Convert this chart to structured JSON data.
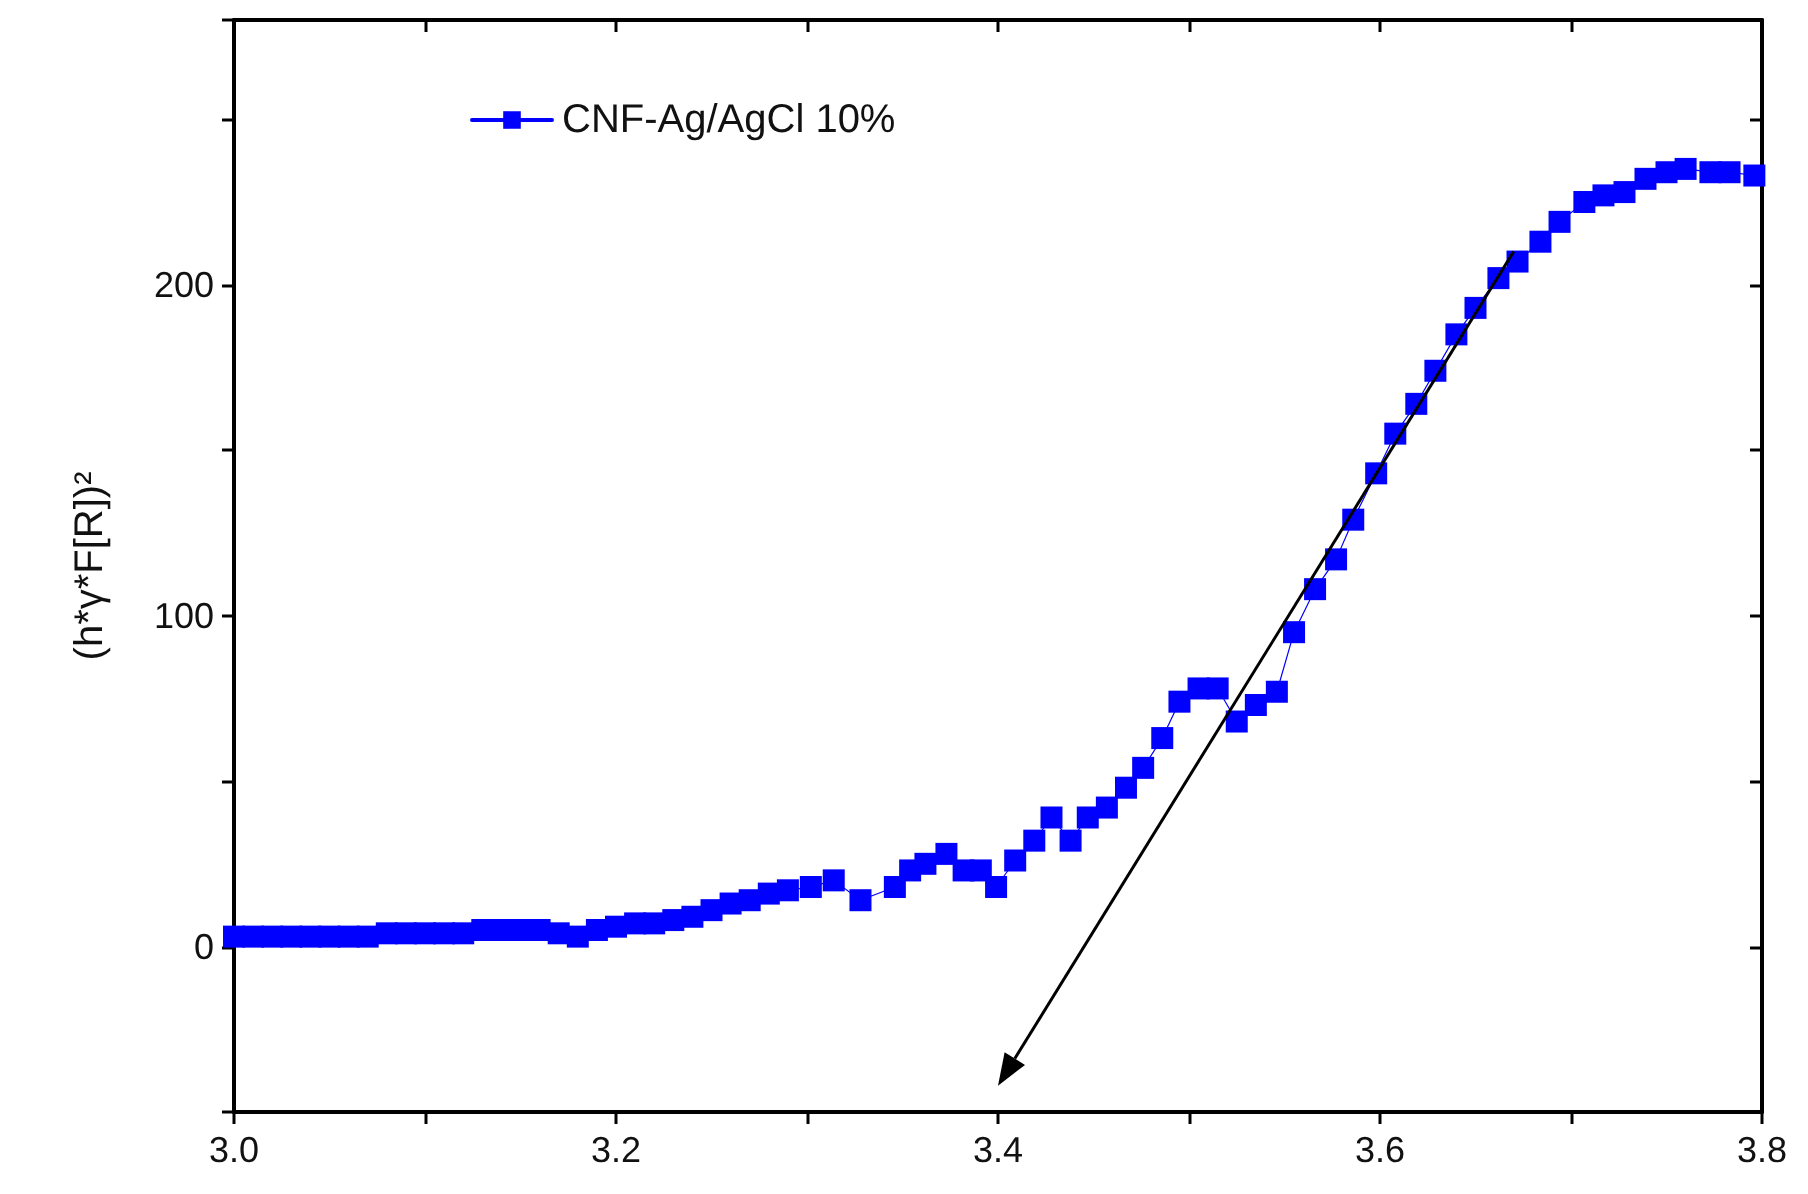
{
  "chart_data": {
    "type": "line",
    "ylabel": "(h*γ*F[R])²",
    "xlim": [
      3.0,
      3.8
    ],
    "xticks": [
      {
        "value": 3.0,
        "label": "3.0"
      },
      {
        "value": 3.1,
        "label": null
      },
      3.2,
      {
        "value": 3.3,
        "label": null
      },
      3.4,
      {
        "value": 3.5,
        "label": null
      },
      3.6,
      {
        "value": 3.7,
        "label": null
      },
      3.8
    ],
    "ylim": [
      -50,
      280
    ],
    "yticks": [
      {
        "value": -50,
        "label": null
      },
      0,
      {
        "value": 50,
        "label": null
      },
      100,
      {
        "value": 150,
        "label": null
      },
      200,
      {
        "value": 250,
        "label": null
      }
    ],
    "legend": "top left",
    "grid": false,
    "series": [
      {
        "name": "CNF-Ag/AgCl 10%",
        "marker": "square",
        "color": "#0000ff",
        "x": [
          3.0,
          3.01,
          3.02,
          3.03,
          3.04,
          3.05,
          3.06,
          3.07,
          3.08,
          3.09,
          3.1,
          3.11,
          3.12,
          3.13,
          3.14,
          3.15,
          3.16,
          3.17,
          3.18,
          3.19,
          3.2,
          3.21,
          3.22,
          3.23,
          3.24,
          3.25,
          3.26,
          3.27,
          3.28,
          3.29,
          3.302,
          3.314,
          3.328,
          3.346,
          3.354,
          3.362,
          3.373,
          3.382,
          3.391,
          3.399,
          3.409,
          3.419,
          3.428,
          3.438,
          3.447,
          3.457,
          3.467,
          3.476,
          3.486,
          3.495,
          3.505,
          3.515,
          3.525,
          3.535,
          3.546,
          3.555,
          3.566,
          3.577,
          3.586,
          3.598,
          3.608,
          3.619,
          3.629,
          3.64,
          3.65,
          3.662,
          3.672,
          3.684,
          3.694,
          3.707,
          3.717,
          3.728,
          3.739,
          3.75,
          3.76,
          3.773,
          3.783,
          3.796
        ],
        "values": [
          3,
          3,
          3,
          3,
          3,
          3,
          3,
          3,
          4,
          4,
          4,
          4,
          4,
          5,
          5,
          5,
          5,
          4,
          3,
          5,
          6,
          7,
          7,
          8,
          9,
          11,
          13,
          14,
          16,
          17,
          18,
          20,
          14,
          18,
          23,
          25,
          28,
          23,
          23,
          18,
          26,
          32,
          39,
          32,
          39,
          42,
          48,
          54,
          63,
          74,
          78,
          78,
          68,
          73,
          77,
          95,
          108,
          117,
          129,
          143,
          155,
          164,
          174,
          185,
          193,
          202,
          207,
          213,
          219,
          225,
          227,
          228,
          232,
          234,
          235,
          234,
          234,
          233
        ]
      }
    ]
  }
}
